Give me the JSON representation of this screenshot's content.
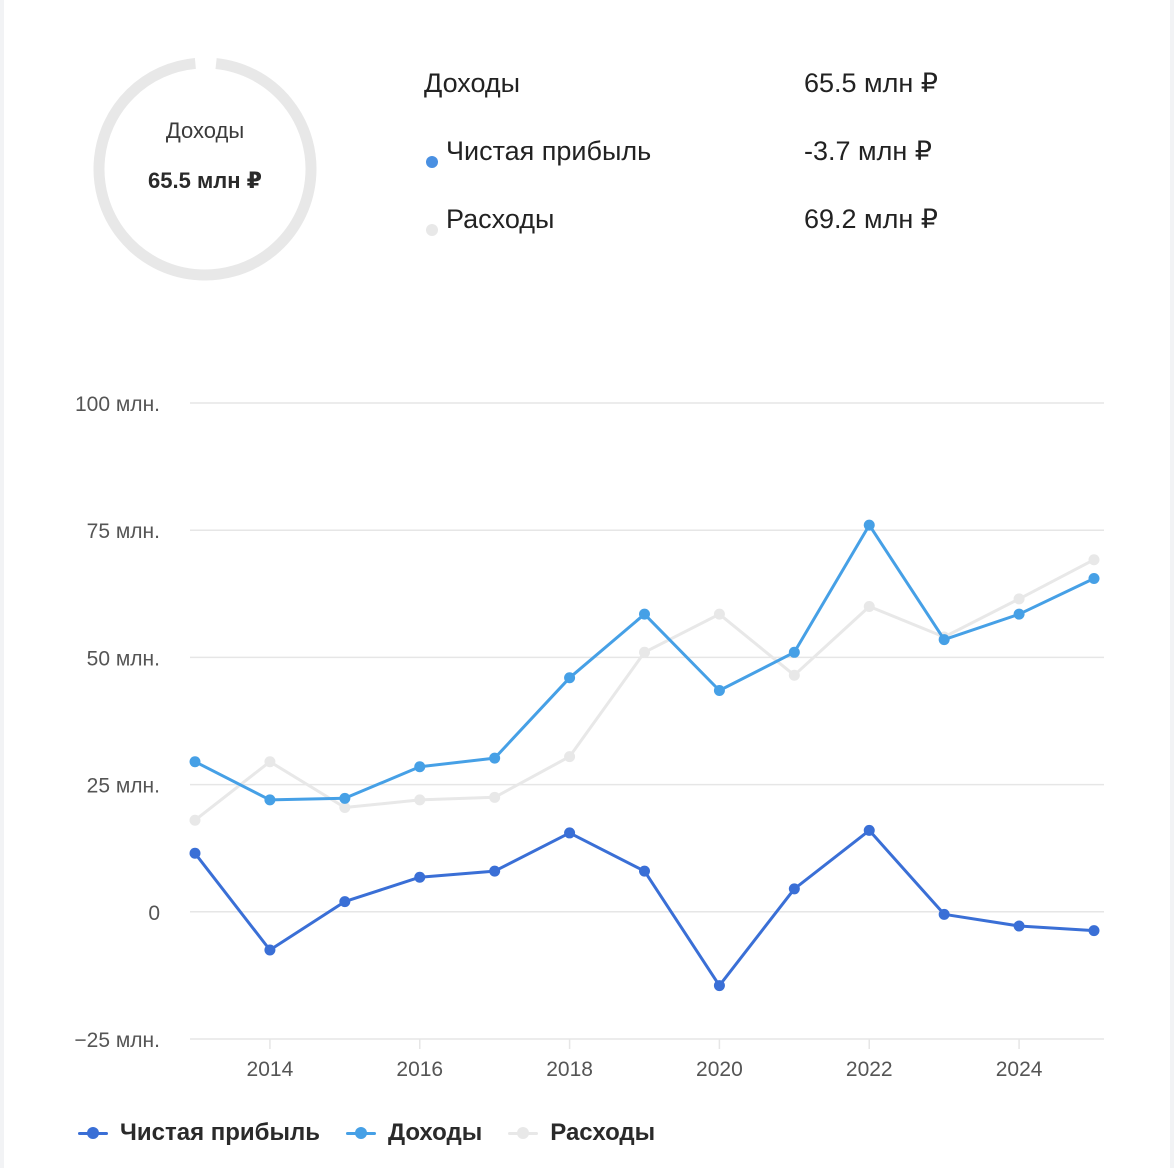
{
  "summary": {
    "donut_label": "Доходы",
    "donut_value": "65.5 млн ₽",
    "rows": [
      {
        "label": "Доходы",
        "value": "65.5 млн ₽"
      },
      {
        "label": "Чистая прибыль",
        "value": "-3.7 млн ₽",
        "color": "#4a90e2"
      },
      {
        "label": "Расходы",
        "value": "69.2 млн ₽",
        "color": "#e8e8e8"
      }
    ]
  },
  "colors": {
    "profit": "#3a6fd6",
    "income": "#46a0e6",
    "expenses": "#e8e8e8",
    "grid": "#e6e6e6",
    "tick": "#555555",
    "donut": "#e8e8e8"
  },
  "chart_data": {
    "type": "line",
    "x": [
      2013,
      2014,
      2015,
      2016,
      2017,
      2018,
      2019,
      2020,
      2021,
      2022,
      2023,
      2024,
      2025
    ],
    "xticks": [
      2014,
      2016,
      2018,
      2020,
      2022,
      2024
    ],
    "xtick_labels": [
      "2014",
      "2016",
      "2018",
      "2020",
      "2022",
      "2024"
    ],
    "yticks": [
      -25,
      0,
      25,
      50,
      75,
      100
    ],
    "ytick_labels": [
      "−25 млн.",
      "0",
      "25 млн.",
      "50 млн.",
      "75 млн.",
      "100 млн."
    ],
    "xlim": [
      2013,
      2025
    ],
    "ylim": [
      -25,
      100
    ],
    "grid": true,
    "legend_position": "bottom-left",
    "series": [
      {
        "key": "profit",
        "name": "Чистая прибыль",
        "color": "#3a6fd6",
        "values": [
          11.5,
          -7.5,
          2.0,
          6.8,
          8.0,
          15.5,
          8.0,
          -14.5,
          4.5,
          16.0,
          -0.5,
          -2.8,
          -3.7
        ]
      },
      {
        "key": "income",
        "name": "Доходы",
        "color": "#46a0e6",
        "values": [
          29.5,
          22.0,
          22.3,
          28.5,
          30.2,
          46.0,
          58.5,
          43.5,
          51.0,
          76.0,
          53.5,
          58.5,
          65.5
        ]
      },
      {
        "key": "expenses",
        "name": "Расходы",
        "color": "#e8e8e8",
        "values": [
          18.0,
          29.5,
          20.5,
          22.0,
          22.5,
          30.5,
          51.0,
          58.5,
          46.5,
          60.0,
          54.0,
          61.5,
          69.2
        ]
      }
    ],
    "draw_order": [
      "expenses",
      "income",
      "profit"
    ]
  }
}
